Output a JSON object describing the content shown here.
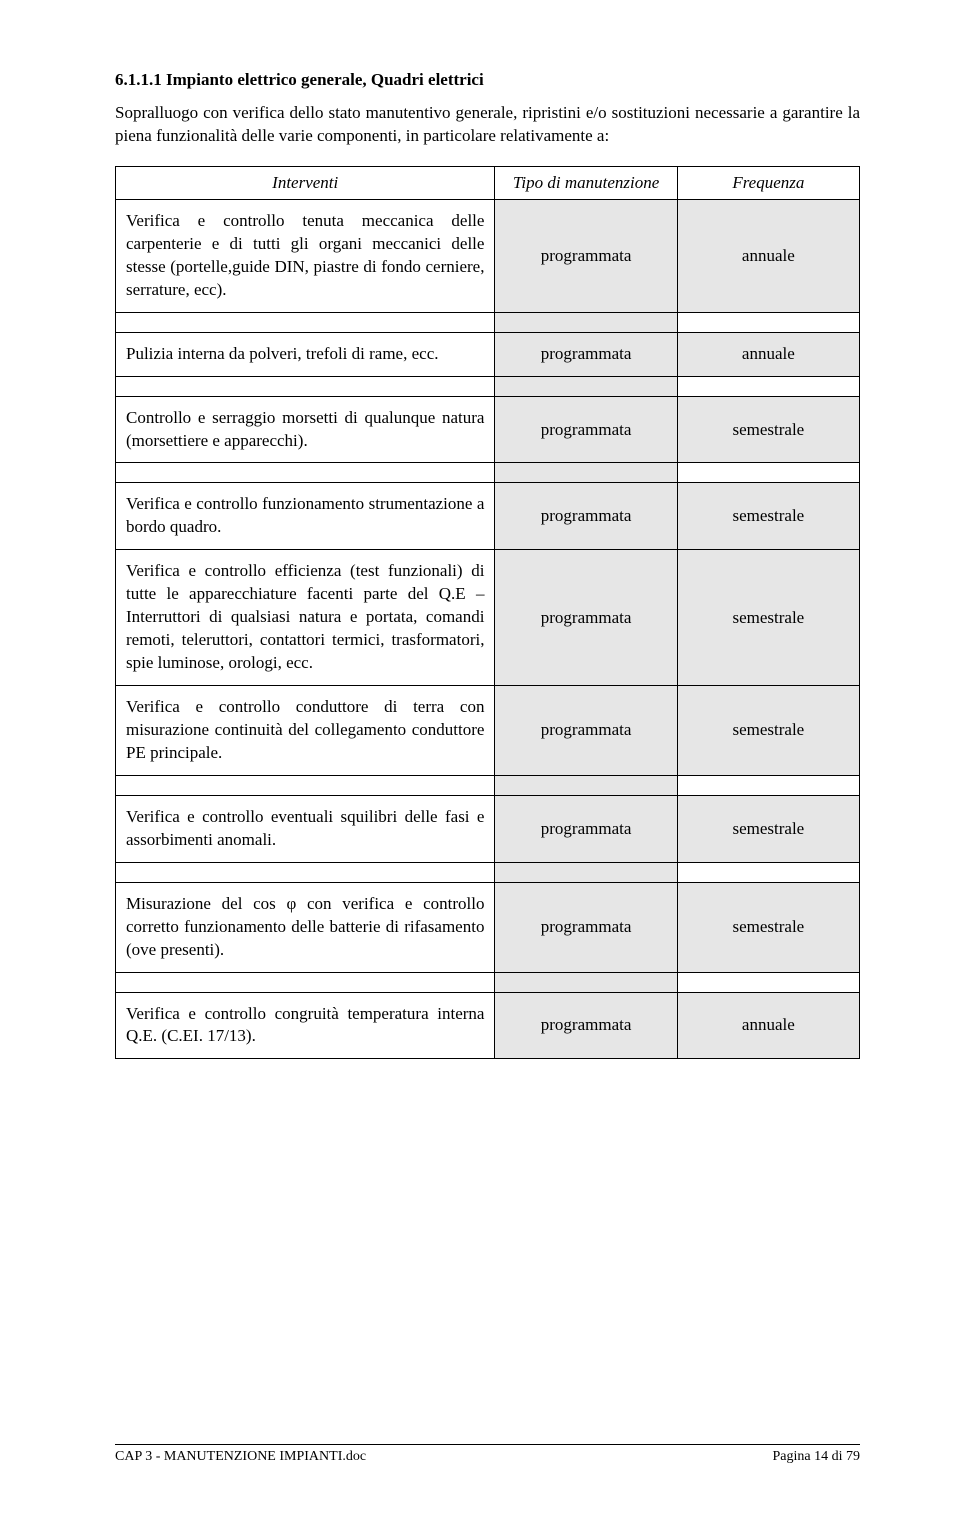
{
  "section": {
    "number": "6.1.1.1",
    "title": "Impianto elettrico generale, Quadri elettrici",
    "intro": "Sopralluogo con verifica dello stato manutentivo generale, ripristini e/o sostituzioni necessarie a garantire la piena funzionalità delle varie componenti, in particolare relativamente a:"
  },
  "table": {
    "headers": {
      "c1": "Interventi",
      "c2": "Tipo di manutenzione",
      "c3": "Frequenza"
    },
    "rows": [
      {
        "desc": "Verifica e controllo tenuta meccanica delle carpenterie e di tutti gli organi meccanici delle stesse (portelle,guide DIN, piastre di fondo cerniere, serrature, ecc).",
        "tipo": "programmata",
        "freq": "annuale",
        "blank_after": true
      },
      {
        "desc": "Pulizia interna da polveri, trefoli di rame, ecc.",
        "tipo": "programmata",
        "freq": "annuale",
        "blank_after": true
      },
      {
        "desc": "Controllo e serraggio morsetti di qualunque natura (morsettiere e apparecchi).",
        "tipo": "programmata",
        "freq": "semestrale",
        "blank_after": true
      },
      {
        "desc": "Verifica e controllo funzionamento strumentazione a bordo quadro.",
        "tipo": "programmata",
        "freq": "semestrale",
        "blank_after": false
      },
      {
        "desc": "Verifica e controllo efficienza (test funzionali) di tutte le apparecchiature facenti parte del Q.E – Interruttori di qualsiasi natura e portata, comandi remoti, teleruttori, contattori termici, trasformatori, spie luminose, orologi, ecc.",
        "tipo": "programmata",
        "freq": "semestrale",
        "blank_after": false
      },
      {
        "desc": "Verifica e controllo conduttore di terra con misurazione continuità del collegamento conduttore PE principale.",
        "tipo": "programmata",
        "freq": "semestrale",
        "blank_after": true
      },
      {
        "desc": "Verifica e controllo eventuali squilibri delle fasi e assorbimenti anomali.",
        "tipo": "programmata",
        "freq": "semestrale",
        "blank_after": true
      },
      {
        "desc": "Misurazione del cos φ con verifica e controllo corretto funzionamento delle batterie di rifasamento (ove presenti).",
        "tipo": "programmata",
        "freq": "semestrale",
        "blank_after": true
      },
      {
        "desc": "Verifica e controllo congruità temperatura interna Q.E. (C.EI. 17/13).",
        "tipo": "programmata",
        "freq": "annuale",
        "blank_after": false
      }
    ]
  },
  "footer": {
    "left": "CAP 3 - MANUTENZIONE IMPIANTI.doc",
    "right": "Pagina 14 di 79"
  },
  "colors": {
    "zebra": "#e6e6e6",
    "text": "#000000",
    "bg": "#ffffff",
    "border": "#000000"
  }
}
